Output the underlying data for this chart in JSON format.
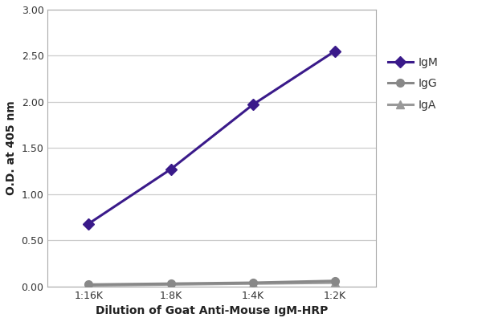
{
  "x_labels": [
    "1:16K",
    "1:8K",
    "1:4K",
    "1:2K"
  ],
  "x_values": [
    1,
    2,
    3,
    4
  ],
  "IgM_values": [
    0.68,
    1.27,
    1.97,
    2.55
  ],
  "IgG_values": [
    0.02,
    0.03,
    0.04,
    0.06
  ],
  "IgA_values": [
    0.01,
    0.02,
    0.03,
    0.04
  ],
  "IgM_color": "#3a1a8a",
  "IgG_color": "#888888",
  "IgA_color": "#999999",
  "IgM_marker": "D",
  "IgG_marker": "o",
  "IgA_marker": "^",
  "xlabel": "Dilution of Goat Anti-Mouse IgM-HRP",
  "ylabel": "O.D. at 405 nm",
  "ylim": [
    0.0,
    3.0
  ],
  "yticks": [
    0.0,
    0.5,
    1.0,
    1.5,
    2.0,
    2.5,
    3.0
  ],
  "ytick_labels": [
    "0.00",
    "0.50",
    "1.00",
    "1.50",
    "2.00",
    "2.50",
    "3.00"
  ],
  "plot_bg_color": "#ffffff",
  "fig_bg_color": "#ffffff",
  "grid_color": "#cccccc",
  "linewidth": 2.2,
  "markersize": 7,
  "tick_fontsize": 9,
  "label_fontsize": 10,
  "legend_fontsize": 10
}
